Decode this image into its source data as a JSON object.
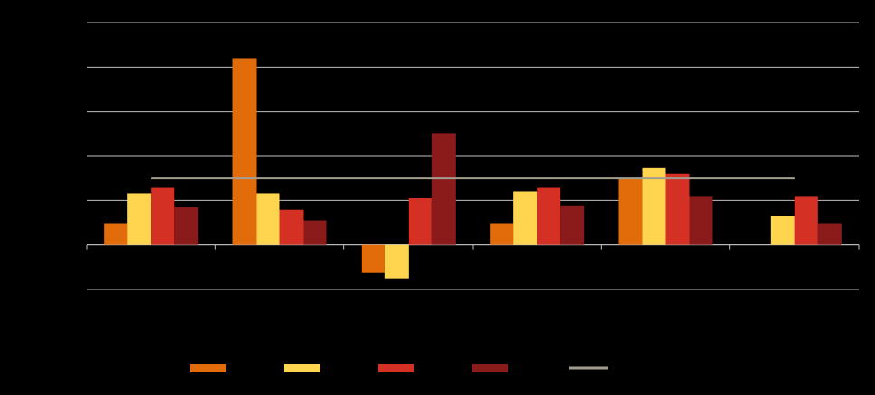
{
  "chart_data": {
    "type": "bar",
    "categories": [
      null,
      null,
      null,
      null,
      null,
      null
    ],
    "series": [
      {
        "color": "#e36c0a",
        "values": [
          0.49,
          4.2,
          -0.63,
          0.49,
          1.5,
          0
        ]
      },
      {
        "color": "#ffd44f",
        "values": [
          1.16,
          1.16,
          -0.75,
          1.2,
          1.74,
          0.65
        ]
      },
      {
        "color": "#d43024",
        "values": [
          1.3,
          0.79,
          1.05,
          1.3,
          1.6,
          1.1
        ]
      },
      {
        "color": "#8b1a1a",
        "values": [
          0.85,
          0.55,
          2.5,
          0.89,
          1.1,
          0.49
        ]
      },
      {
        "type": "line",
        "color": "#a39e8f",
        "values": [
          1.5,
          1.5,
          1.5,
          1.5,
          1.5,
          1.5
        ]
      }
    ],
    "ylim": [
      -1,
      5
    ],
    "yticks": [
      -1,
      0,
      1,
      2,
      3,
      4,
      5
    ],
    "grid": true,
    "legend": "bottom"
  }
}
